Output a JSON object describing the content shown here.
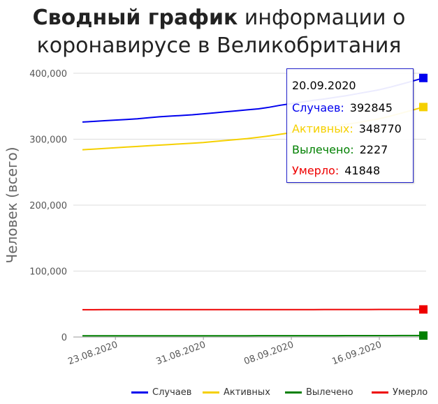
{
  "title": {
    "bold": "Сводный график",
    "rest_line1": " информации о",
    "line2": "коронавирусе в Великобритания"
  },
  "chart_data": {
    "type": "line",
    "ylabel": "Человек (всего)",
    "ylim": [
      0,
      400000
    ],
    "y_ticks": [
      "0",
      "100,000",
      "200,000",
      "300,000",
      "400,000"
    ],
    "x_ticks": [
      "23.08.2020",
      "31.08.2020",
      "08.09.2020",
      "16.09.2020"
    ],
    "grid": true,
    "legend_position": "bottom",
    "x": [
      "20.08.2020",
      "21.08.2020",
      "22.08.2020",
      "23.08.2020",
      "24.08.2020",
      "25.08.2020",
      "26.08.2020",
      "27.08.2020",
      "28.08.2020",
      "29.08.2020",
      "30.08.2020",
      "31.08.2020",
      "01.09.2020",
      "02.09.2020",
      "03.09.2020",
      "04.09.2020",
      "05.09.2020",
      "06.09.2020",
      "07.09.2020",
      "08.09.2020",
      "09.09.2020",
      "10.09.2020",
      "11.09.2020",
      "12.09.2020",
      "13.09.2020",
      "14.09.2020",
      "15.09.2020",
      "16.09.2020",
      "17.09.2020",
      "18.09.2020",
      "19.09.2020",
      "20.09.2020"
    ],
    "series": [
      {
        "name": "Случаев",
        "color": "#0000ee",
        "values": [
          326000,
          327000,
          328000,
          329000,
          330000,
          331000,
          332500,
          334000,
          335000,
          336000,
          337000,
          338500,
          340000,
          341500,
          343000,
          344500,
          346000,
          348500,
          351500,
          354000,
          356500,
          359000,
          361000,
          363500,
          366000,
          369000,
          372000,
          375000,
          379000,
          383500,
          388000,
          392845
        ]
      },
      {
        "name": "Активных",
        "color": "#f5d000",
        "values": [
          284000,
          285000,
          286000,
          287000,
          288000,
          289000,
          290000,
          291000,
          292000,
          293000,
          294000,
          295000,
          296500,
          298000,
          299500,
          301000,
          303000,
          305000,
          307500,
          310000,
          312500,
          315000,
          317500,
          320000,
          322500,
          325000,
          328000,
          331000,
          335000,
          339500,
          344000,
          348770
        ]
      },
      {
        "name": "Вылечено",
        "color": "#008000",
        "values": [
          1800,
          1810,
          1820,
          1830,
          1840,
          1850,
          1860,
          1870,
          1880,
          1890,
          1900,
          1910,
          1920,
          1930,
          1940,
          1950,
          1960,
          1970,
          1980,
          1990,
          2000,
          2010,
          2030,
          2050,
          2070,
          2090,
          2110,
          2130,
          2160,
          2190,
          2210,
          2227
        ]
      },
      {
        "name": "Умерло",
        "color": "#ee0000",
        "values": [
          41400,
          41420,
          41430,
          41440,
          41450,
          41460,
          41470,
          41480,
          41490,
          41500,
          41510,
          41520,
          41530,
          41540,
          41550,
          41560,
          41570,
          41580,
          41590,
          41600,
          41620,
          41640,
          41660,
          41680,
          41700,
          41720,
          41740,
          41760,
          41790,
          41810,
          41830,
          41848
        ]
      }
    ]
  },
  "tooltip": {
    "date": "20.09.2020",
    "rows": [
      {
        "label": "Случаев:",
        "value": "392845",
        "color": "#0000ee"
      },
      {
        "label": "Активных:",
        "value": "348770",
        "color": "#f5d000"
      },
      {
        "label": "Вылечено:",
        "value": "2227",
        "color": "#008000"
      },
      {
        "label": "Умерло:",
        "value": "41848",
        "color": "#ee0000"
      }
    ]
  },
  "legend": [
    {
      "label": "Случаев",
      "color": "#0000ee"
    },
    {
      "label": "Активных",
      "color": "#f5d000"
    },
    {
      "label": "Вылечено",
      "color": "#008000"
    },
    {
      "label": "Умерло",
      "color": "#ee0000"
    }
  ]
}
